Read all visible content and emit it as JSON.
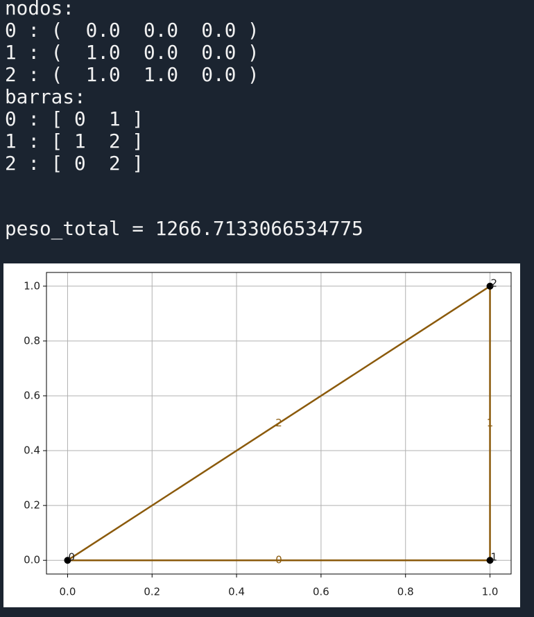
{
  "console": {
    "lines": [
      "nodos:",
      "0 : (  0.0  0.0  0.0 )",
      "1 : (  1.0  0.0  0.0 )",
      "2 : (  1.0  1.0  0.0 )",
      "barras:",
      "0 : [ 0  1 ]",
      "1 : [ 1  2 ]",
      "2 : [ 0  2 ]"
    ],
    "result": "peso_total = 1266.7133066534775"
  },
  "chart_data": {
    "type": "truss",
    "nodes": {
      "labels": [
        "0",
        "1",
        "2"
      ],
      "x": [
        0,
        1,
        1
      ],
      "values": [
        0,
        0,
        1
      ],
      "color": "#000000"
    },
    "bars": [
      {
        "label": "0",
        "x": [
          0,
          1
        ],
        "values": [
          0,
          0
        ]
      },
      {
        "label": "1",
        "x": [
          1,
          1
        ],
        "values": [
          0,
          1
        ]
      },
      {
        "label": "2",
        "x": [
          0,
          1
        ],
        "values": [
          0,
          1
        ]
      }
    ],
    "bar_color": "#8b5a0b",
    "xlim": [
      -0.05,
      1.05
    ],
    "ylim": [
      -0.05,
      1.05
    ],
    "xticks": [
      {
        "value": 0,
        "label": "0.0"
      },
      0.2,
      0.4,
      0.6,
      0.8,
      {
        "value": 1,
        "label": "1.0"
      }
    ],
    "yticks": [
      {
        "value": 0,
        "label": "0.0"
      },
      0.2,
      0.4,
      0.6,
      0.8,
      {
        "value": 1,
        "label": "1.0"
      }
    ],
    "grid": true
  }
}
